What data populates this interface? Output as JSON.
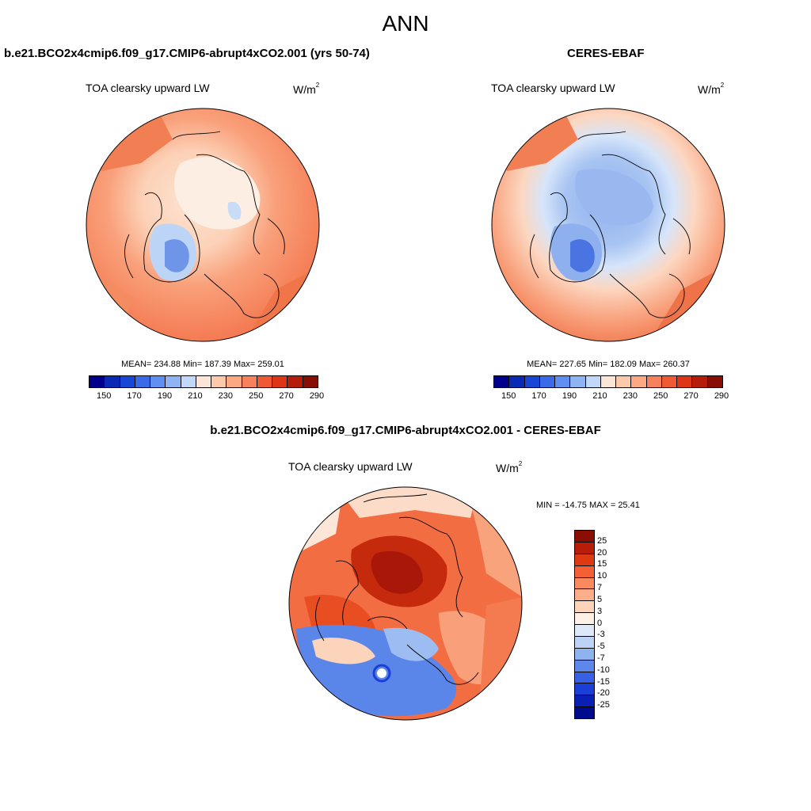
{
  "figure_title": "ANN",
  "panels": [
    {
      "title": "b.e21.BCO2x4cmip6.f09_g17.CMIP6-abrupt4xCO2.001 (yrs 50-74)",
      "variable": "TOA clearsky upward LW",
      "units_base": "W/m",
      "units_exp": "2",
      "stats": "MEAN= 234.88  Min= 187.39  Max= 259.01"
    },
    {
      "title": "CERES-EBAF",
      "variable": "TOA clearsky upward LW",
      "units_base": "W/m",
      "units_exp": "2",
      "stats": "MEAN= 227.65  Min= 182.09  Max= 260.37"
    },
    {
      "title": "b.e21.BCO2x4cmip6.f09_g17.CMIP6-abrupt4xCO2.001 - CERES-EBAF",
      "variable": "TOA clearsky upward LW",
      "units_base": "W/m",
      "units_exp": "2",
      "stats": "MIN = -14.75 MAX =  25.41"
    }
  ],
  "abs_colorbar": {
    "colors": [
      "#00008b",
      "#0a2ab4",
      "#1a46d6",
      "#3a6ae8",
      "#5f8ff0",
      "#8fb4f4",
      "#c2d8fa",
      "#fbe5d6",
      "#fcc9aa",
      "#fca882",
      "#f7815c",
      "#ef5a35",
      "#dd3515",
      "#b51c0a",
      "#880e05"
    ],
    "labels": [
      "150",
      "170",
      "190",
      "210",
      "230",
      "250",
      "270",
      "290"
    ]
  },
  "diff_colorbar": {
    "colors": [
      "#8b0e03",
      "#b81d0a",
      "#de3a12",
      "#f45f33",
      "#f9895e",
      "#fcae8a",
      "#fdd3b9",
      "#fdf0e6",
      "#dde9f8",
      "#bcd3f5",
      "#8fb3ef",
      "#5d87ea",
      "#3760e3",
      "#1a3fd6",
      "#0a20b5",
      "#000a8c"
    ],
    "labels": [
      "25",
      "20",
      "15",
      "10",
      "7",
      "5",
      "3",
      "0",
      "-3",
      "-5",
      "-7",
      "-10",
      "-15",
      "-20",
      "-25"
    ]
  }
}
